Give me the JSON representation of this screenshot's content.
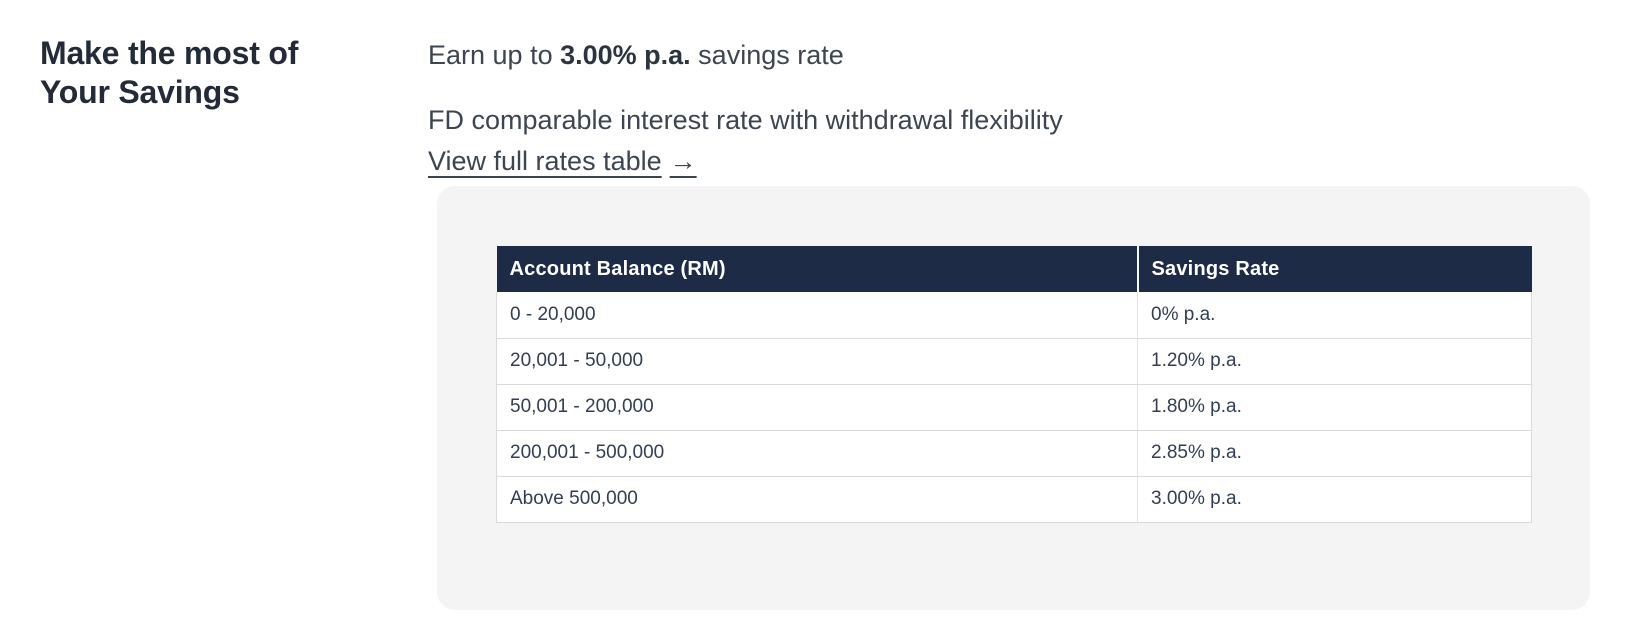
{
  "page": {
    "heading": "Make the most of Your Savings",
    "intro_prefix": "Earn up to ",
    "intro_highlight": "3.00% p.a.",
    "intro_suffix": " savings rate",
    "subline": "FD comparable interest rate with withdrawal flexibility",
    "link_label": "View full rates table",
    "link_arrow": "→"
  },
  "rates_table": {
    "columns": [
      "Account Balance (RM)",
      "Savings Rate"
    ],
    "rows": [
      [
        "0 - 20,000",
        "0% p.a."
      ],
      [
        "20,001 - 50,000",
        "1.20% p.a."
      ],
      [
        "50,001 - 200,000",
        "1.80% p.a."
      ],
      [
        "200,001 - 500,000",
        "2.85% p.a."
      ],
      [
        "Above 500,000",
        "3.00% p.a."
      ]
    ]
  },
  "colors": {
    "header_bg": "#1e2b47",
    "panel_bg": "#f4f4f4",
    "heading_text": "#242b38",
    "body_text": "#3d4550",
    "highlight_text": "#2c3440",
    "row_text": "#323e53",
    "border": "#dadada"
  }
}
